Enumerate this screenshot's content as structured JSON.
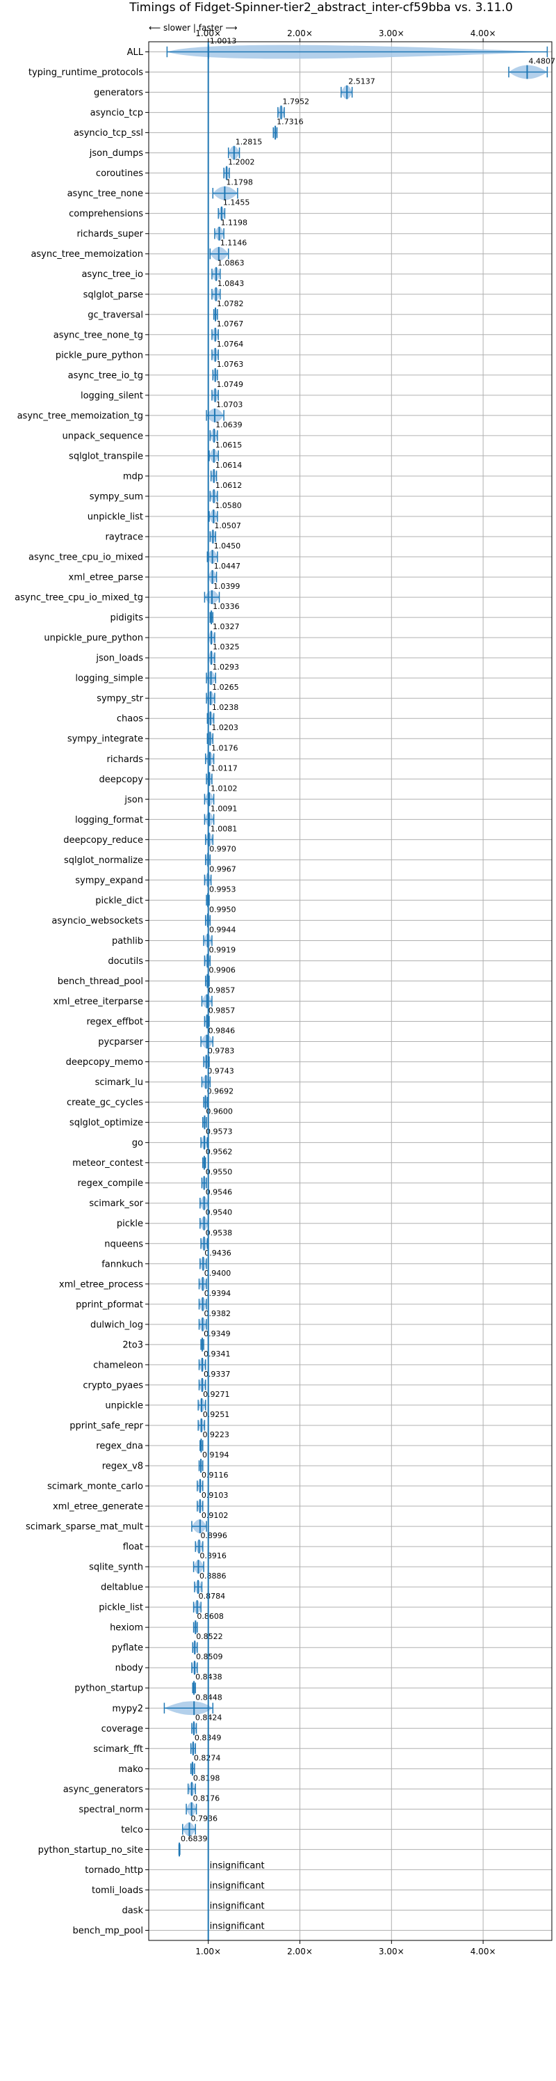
{
  "chart_data": {
    "type": "violin",
    "title": "Timings of Fidget-Spinner-tier2_abstract_inter-cf59bba vs. 3.11.0",
    "direction_note": "⟵ slower | faster ⟶",
    "x_ticks": [
      "1.00×",
      "2.00×",
      "3.00×",
      "4.00×"
    ],
    "x_tick_values": [
      1,
      2,
      3,
      4
    ],
    "xlim": [
      0.35,
      4.75
    ],
    "reference_line": 1.0,
    "grid": true,
    "colors": {
      "violin": "#a6c8e8",
      "marker": "#1f77b4",
      "reference": "#1f77b4"
    },
    "insignificant_label": "insignificant",
    "benchmarks": [
      {
        "name": "ALL",
        "value": 1.0013,
        "label": "1.0013",
        "min": 0.55,
        "max": 4.7
      },
      {
        "name": "typing_runtime_protocols",
        "value": 4.4807,
        "label": "4.4807",
        "min": 4.28,
        "max": 4.7
      },
      {
        "name": "generators",
        "value": 2.5137,
        "label": "2.5137",
        "min": 2.45,
        "max": 2.57
      },
      {
        "name": "asyncio_tcp",
        "value": 1.7952,
        "label": "1.7952",
        "min": 1.76,
        "max": 1.83
      },
      {
        "name": "asyncio_tcp_ssl",
        "value": 1.7316,
        "label": "1.7316",
        "min": 1.71,
        "max": 1.75
      },
      {
        "name": "json_dumps",
        "value": 1.2815,
        "label": "1.2815",
        "min": 1.22,
        "max": 1.34
      },
      {
        "name": "coroutines",
        "value": 1.2002,
        "label": "1.2002",
        "min": 1.17,
        "max": 1.23
      },
      {
        "name": "async_tree_none",
        "value": 1.1798,
        "label": "1.1798",
        "min": 1.05,
        "max": 1.32
      },
      {
        "name": "comprehensions",
        "value": 1.1455,
        "label": "1.1455",
        "min": 1.11,
        "max": 1.18
      },
      {
        "name": "richards_super",
        "value": 1.1198,
        "label": "1.1198",
        "min": 1.07,
        "max": 1.17
      },
      {
        "name": "async_tree_memoization",
        "value": 1.1146,
        "label": "1.1146",
        "min": 1.02,
        "max": 1.22
      },
      {
        "name": "async_tree_io",
        "value": 1.0863,
        "label": "1.0863",
        "min": 1.04,
        "max": 1.13
      },
      {
        "name": "sqlglot_parse",
        "value": 1.0843,
        "label": "1.0843",
        "min": 1.04,
        "max": 1.13
      },
      {
        "name": "gc_traversal",
        "value": 1.0782,
        "label": "1.0782",
        "min": 1.06,
        "max": 1.1
      },
      {
        "name": "async_tree_none_tg",
        "value": 1.0767,
        "label": "1.0767",
        "min": 1.04,
        "max": 1.11
      },
      {
        "name": "pickle_pure_python",
        "value": 1.0764,
        "label": "1.0764",
        "min": 1.04,
        "max": 1.11
      },
      {
        "name": "async_tree_io_tg",
        "value": 1.0763,
        "label": "1.0763",
        "min": 1.05,
        "max": 1.1
      },
      {
        "name": "logging_silent",
        "value": 1.0749,
        "label": "1.0749",
        "min": 1.04,
        "max": 1.11
      },
      {
        "name": "async_tree_memoization_tg",
        "value": 1.0703,
        "label": "1.0703",
        "min": 0.98,
        "max": 1.17
      },
      {
        "name": "unpack_sequence",
        "value": 1.0639,
        "label": "1.0639",
        "min": 1.02,
        "max": 1.1
      },
      {
        "name": "sqlglot_transpile",
        "value": 1.0615,
        "label": "1.0615",
        "min": 1.01,
        "max": 1.11
      },
      {
        "name": "mdp",
        "value": 1.0614,
        "label": "1.0614",
        "min": 1.03,
        "max": 1.09
      },
      {
        "name": "sympy_sum",
        "value": 1.0612,
        "label": "1.0612",
        "min": 1.02,
        "max": 1.1
      },
      {
        "name": "unpickle_list",
        "value": 1.058,
        "label": "1.0580",
        "min": 1.01,
        "max": 1.1
      },
      {
        "name": "raytrace",
        "value": 1.0507,
        "label": "1.0507",
        "min": 1.02,
        "max": 1.08
      },
      {
        "name": "async_tree_cpu_io_mixed",
        "value": 1.045,
        "label": "1.0450",
        "min": 0.99,
        "max": 1.1
      },
      {
        "name": "xml_etree_parse",
        "value": 1.0447,
        "label": "1.0447",
        "min": 1.0,
        "max": 1.09
      },
      {
        "name": "async_tree_cpu_io_mixed_tg",
        "value": 1.0399,
        "label": "1.0399",
        "min": 0.96,
        "max": 1.12
      },
      {
        "name": "pidigits",
        "value": 1.0336,
        "label": "1.0336",
        "min": 1.02,
        "max": 1.05
      },
      {
        "name": "unpickle_pure_python",
        "value": 1.0327,
        "label": "1.0327",
        "min": 1.0,
        "max": 1.07
      },
      {
        "name": "json_loads",
        "value": 1.0325,
        "label": "1.0325",
        "min": 1.0,
        "max": 1.07
      },
      {
        "name": "logging_simple",
        "value": 1.0293,
        "label": "1.0293",
        "min": 0.98,
        "max": 1.08
      },
      {
        "name": "sympy_str",
        "value": 1.0265,
        "label": "1.0265",
        "min": 0.98,
        "max": 1.07
      },
      {
        "name": "chaos",
        "value": 1.0238,
        "label": "1.0238",
        "min": 0.99,
        "max": 1.06
      },
      {
        "name": "sympy_integrate",
        "value": 1.0203,
        "label": "1.0203",
        "min": 0.99,
        "max": 1.05
      },
      {
        "name": "richards",
        "value": 1.0176,
        "label": "1.0176",
        "min": 0.97,
        "max": 1.06
      },
      {
        "name": "deepcopy",
        "value": 1.0117,
        "label": "1.0117",
        "min": 0.98,
        "max": 1.04
      },
      {
        "name": "json",
        "value": 1.0102,
        "label": "1.0102",
        "min": 0.96,
        "max": 1.06
      },
      {
        "name": "logging_format",
        "value": 1.0091,
        "label": "1.0091",
        "min": 0.96,
        "max": 1.06
      },
      {
        "name": "deepcopy_reduce",
        "value": 1.0081,
        "label": "1.0081",
        "min": 0.97,
        "max": 1.05
      },
      {
        "name": "sqlglot_normalize",
        "value": 0.997,
        "label": "0.9970",
        "min": 0.97,
        "max": 1.02
      },
      {
        "name": "sympy_expand",
        "value": 0.9967,
        "label": "0.9967",
        "min": 0.96,
        "max": 1.03
      },
      {
        "name": "pickle_dict",
        "value": 0.9953,
        "label": "0.9953",
        "min": 0.98,
        "max": 1.01
      },
      {
        "name": "asyncio_websockets",
        "value": 0.995,
        "label": "0.9950",
        "min": 0.97,
        "max": 1.02
      },
      {
        "name": "pathlib",
        "value": 0.9944,
        "label": "0.9944",
        "min": 0.95,
        "max": 1.04
      },
      {
        "name": "docutils",
        "value": 0.9919,
        "label": "0.9919",
        "min": 0.96,
        "max": 1.02
      },
      {
        "name": "bench_thread_pool",
        "value": 0.9906,
        "label": "0.9906",
        "min": 0.97,
        "max": 1.01
      },
      {
        "name": "xml_etree_iterparse",
        "value": 0.9857,
        "label": "0.9857",
        "min": 0.93,
        "max": 1.04
      },
      {
        "name": "regex_effbot",
        "value": 0.9857,
        "label": "0.9857",
        "min": 0.96,
        "max": 1.01
      },
      {
        "name": "pycparser",
        "value": 0.9846,
        "label": "0.9846",
        "min": 0.92,
        "max": 1.05
      },
      {
        "name": "deepcopy_memo",
        "value": 0.9783,
        "label": "0.9783",
        "min": 0.95,
        "max": 1.01
      },
      {
        "name": "scimark_lu",
        "value": 0.9743,
        "label": "0.9743",
        "min": 0.93,
        "max": 1.02
      },
      {
        "name": "create_gc_cycles",
        "value": 0.9692,
        "label": "0.9692",
        "min": 0.95,
        "max": 0.99
      },
      {
        "name": "sqlglot_optimize",
        "value": 0.96,
        "label": "0.9600",
        "min": 0.94,
        "max": 0.98
      },
      {
        "name": "go",
        "value": 0.9573,
        "label": "0.9573",
        "min": 0.92,
        "max": 0.99
      },
      {
        "name": "meteor_contest",
        "value": 0.9562,
        "label": "0.9562",
        "min": 0.94,
        "max": 0.97
      },
      {
        "name": "regex_compile",
        "value": 0.955,
        "label": "0.9550",
        "min": 0.93,
        "max": 0.98
      },
      {
        "name": "scimark_sor",
        "value": 0.9546,
        "label": "0.9546",
        "min": 0.91,
        "max": 1.0
      },
      {
        "name": "pickle",
        "value": 0.954,
        "label": "0.9540",
        "min": 0.91,
        "max": 1.0
      },
      {
        "name": "nqueens",
        "value": 0.9538,
        "label": "0.9538",
        "min": 0.92,
        "max": 0.99
      },
      {
        "name": "fannkuch",
        "value": 0.9436,
        "label": "0.9436",
        "min": 0.91,
        "max": 0.98
      },
      {
        "name": "xml_etree_process",
        "value": 0.94,
        "label": "0.9400",
        "min": 0.9,
        "max": 0.98
      },
      {
        "name": "pprint_pformat",
        "value": 0.9394,
        "label": "0.9394",
        "min": 0.9,
        "max": 0.98
      },
      {
        "name": "dulwich_log",
        "value": 0.9382,
        "label": "0.9382",
        "min": 0.9,
        "max": 0.98
      },
      {
        "name": "2to3",
        "value": 0.9349,
        "label": "0.9349",
        "min": 0.92,
        "max": 0.95
      },
      {
        "name": "chameleon",
        "value": 0.9341,
        "label": "0.9341",
        "min": 0.9,
        "max": 0.97
      },
      {
        "name": "crypto_pyaes",
        "value": 0.9337,
        "label": "0.9337",
        "min": 0.9,
        "max": 0.97
      },
      {
        "name": "unpickle",
        "value": 0.9271,
        "label": "0.9271",
        "min": 0.89,
        "max": 0.97
      },
      {
        "name": "pprint_safe_repr",
        "value": 0.9251,
        "label": "0.9251",
        "min": 0.89,
        "max": 0.96
      },
      {
        "name": "regex_dna",
        "value": 0.9223,
        "label": "0.9223",
        "min": 0.91,
        "max": 0.94
      },
      {
        "name": "regex_v8",
        "value": 0.9194,
        "label": "0.9194",
        "min": 0.9,
        "max": 0.94
      },
      {
        "name": "scimark_monte_carlo",
        "value": 0.9116,
        "label": "0.9116",
        "min": 0.88,
        "max": 0.94
      },
      {
        "name": "xml_etree_generate",
        "value": 0.9103,
        "label": "0.9103",
        "min": 0.88,
        "max": 0.94
      },
      {
        "name": "scimark_sparse_mat_mult",
        "value": 0.9102,
        "label": "0.9102",
        "min": 0.82,
        "max": 0.98
      },
      {
        "name": "float",
        "value": 0.8996,
        "label": "0.8996",
        "min": 0.86,
        "max": 0.94
      },
      {
        "name": "sqlite_synth",
        "value": 0.8916,
        "label": "0.8916",
        "min": 0.84,
        "max": 0.95
      },
      {
        "name": "deltablue",
        "value": 0.8886,
        "label": "0.8886",
        "min": 0.85,
        "max": 0.93
      },
      {
        "name": "pickle_list",
        "value": 0.8784,
        "label": "0.8784",
        "min": 0.84,
        "max": 0.92
      },
      {
        "name": "hexiom",
        "value": 0.8608,
        "label": "0.8608",
        "min": 0.84,
        "max": 0.88
      },
      {
        "name": "pyflate",
        "value": 0.8522,
        "label": "0.8522",
        "min": 0.83,
        "max": 0.88
      },
      {
        "name": "nbody",
        "value": 0.8509,
        "label": "0.8509",
        "min": 0.82,
        "max": 0.88
      },
      {
        "name": "python_startup",
        "value": 0.8438,
        "label": "0.8438",
        "min": 0.83,
        "max": 0.86
      },
      {
        "name": "mypy2",
        "value": 0.8448,
        "label": "0.8448",
        "min": 0.52,
        "max": 1.05
      },
      {
        "name": "coverage",
        "value": 0.8424,
        "label": "0.8424",
        "min": 0.82,
        "max": 0.87
      },
      {
        "name": "scimark_fft",
        "value": 0.8349,
        "label": "0.8349",
        "min": 0.81,
        "max": 0.86
      },
      {
        "name": "mako",
        "value": 0.8274,
        "label": "0.8274",
        "min": 0.81,
        "max": 0.85
      },
      {
        "name": "async_generators",
        "value": 0.8198,
        "label": "0.8198",
        "min": 0.78,
        "max": 0.86
      },
      {
        "name": "spectral_norm",
        "value": 0.8176,
        "label": "0.8176",
        "min": 0.76,
        "max": 0.87
      },
      {
        "name": "telco",
        "value": 0.7936,
        "label": "0.7936",
        "min": 0.72,
        "max": 0.86
      },
      {
        "name": "python_startup_no_site",
        "value": 0.6839,
        "label": "0.6839",
        "min": 0.68,
        "max": 0.69
      },
      {
        "name": "tornado_http",
        "value": null,
        "label": "insignificant"
      },
      {
        "name": "tomli_loads",
        "value": null,
        "label": "insignificant"
      },
      {
        "name": "dask",
        "value": null,
        "label": "insignificant"
      },
      {
        "name": "bench_mp_pool",
        "value": null,
        "label": "insignificant"
      }
    ]
  }
}
